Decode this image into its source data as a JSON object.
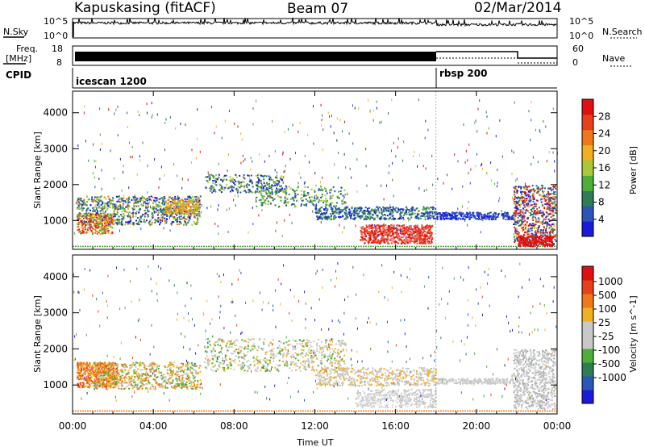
{
  "header": {
    "station": "Kapuskasing (fitACF)",
    "beam": "Beam 07",
    "date": "02/Mar/2014"
  },
  "strip_labels": {
    "nsky": "N.Sky",
    "nsearch": "N.Search",
    "freq_top": "Freq.",
    "freq_unit": "[MHz]",
    "nave": "Nave",
    "cpid": "CPID"
  },
  "strip_ticks": {
    "noise_left": [
      "10^5",
      "10^0"
    ],
    "noise_right": [
      "10^5",
      "10^0"
    ],
    "freq_left": [
      "18",
      "8"
    ],
    "freq_right": [
      "60",
      "0"
    ]
  },
  "cpid_modes": [
    {
      "name": "icescan 1200",
      "start_hour": 0
    },
    {
      "name": "rbsp 200",
      "start_hour": 18
    }
  ],
  "colors": {
    "power": [
      "#1a1adc",
      "#2a56b8",
      "#2e7d55",
      "#4fae3a",
      "#a8c83a",
      "#f0b020",
      "#f07818",
      "#e84018",
      "#e01010"
    ],
    "velocity": [
      "#1a1adc",
      "#2a56b8",
      "#2e7d55",
      "#4fae3a",
      "#c8c8c8",
      "#c8c8c8",
      "#f0b020",
      "#f07818",
      "#e84018",
      "#e01010"
    ]
  },
  "chart_data": [
    {
      "type": "heatmap",
      "name": "power",
      "xlabel": "",
      "ylabel": "Slant Range [km]",
      "x_ticks": [
        "00:00",
        "04:00",
        "08:00",
        "12:00",
        "16:00",
        "20:00",
        "00:00"
      ],
      "xlim_hours": [
        0,
        24
      ],
      "y_ticks": [
        1000,
        2000,
        3000,
        4000
      ],
      "ylim_km": [
        200,
        4600
      ],
      "colorbar": {
        "label": "Power [dB]",
        "ticks": [
          4,
          8,
          12,
          16,
          20,
          24,
          28
        ],
        "range": [
          0,
          32
        ]
      }
    },
    {
      "type": "heatmap",
      "name": "velocity",
      "xlabel": "Time UT",
      "ylabel": "Slant Range [km]",
      "x_ticks": [
        "00:00",
        "04:00",
        "08:00",
        "12:00",
        "16:00",
        "20:00",
        "00:00"
      ],
      "xlim_hours": [
        0,
        24
      ],
      "y_ticks": [
        1000,
        2000,
        3000,
        4000
      ],
      "ylim_km": [
        200,
        4600
      ],
      "colorbar": {
        "label": "Velocity [m s^-1]",
        "ticks": [
          "1000",
          "500",
          "100",
          "25",
          "-25",
          "-100",
          "-500",
          "-1000"
        ]
      }
    }
  ]
}
